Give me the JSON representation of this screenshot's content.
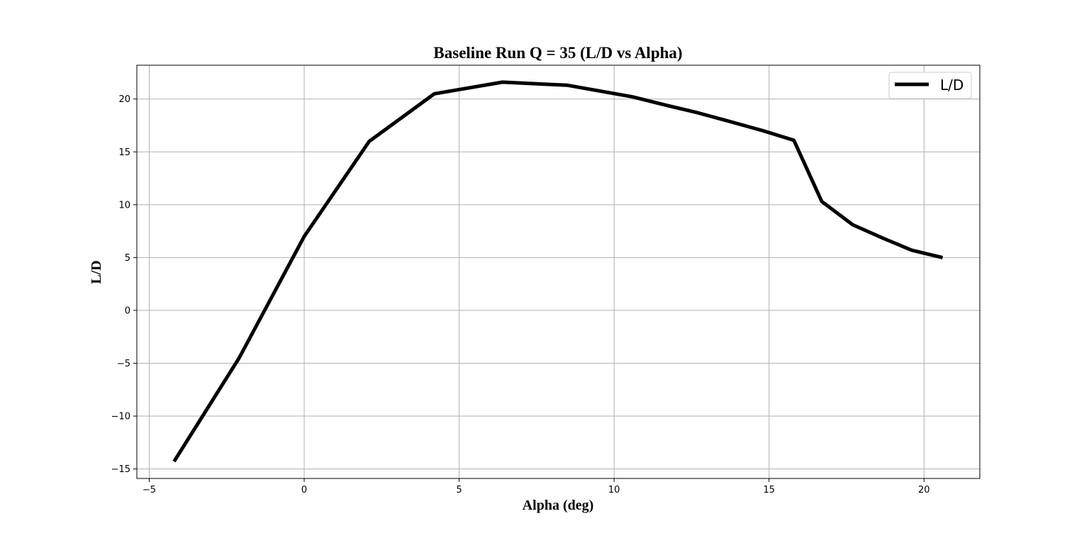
{
  "chart_data": {
    "type": "line",
    "title": "Baseline Run Q = 35 (L/D vs Alpha)",
    "xlabel": "Alpha (deg)",
    "ylabel": "L/D",
    "xlim": [
      -5.4,
      21.8
    ],
    "ylim": [
      -15.9,
      23.2
    ],
    "xticks": [
      -5,
      0,
      5,
      10,
      15,
      20
    ],
    "yticks": [
      -15,
      -10,
      -5,
      0,
      5,
      10,
      15,
      20
    ],
    "xtick_labels": [
      "−5",
      "0",
      "5",
      "10",
      "15",
      "20"
    ],
    "ytick_labels": [
      "−15",
      "−10",
      "−5",
      "0",
      "5",
      "10",
      "15",
      "20"
    ],
    "grid": true,
    "legend_position": "top-right",
    "series": [
      {
        "name": "L/D",
        "color": "#000000",
        "x": [
          -4.2,
          -2.1,
          0.0,
          2.1,
          4.2,
          6.4,
          8.5,
          10.6,
          11.7,
          12.7,
          13.7,
          14.8,
          15.8,
          16.7,
          17.7,
          18.7,
          19.6,
          20.6
        ],
        "y": [
          -14.3,
          -4.5,
          7.0,
          16.0,
          20.5,
          21.6,
          21.3,
          20.2,
          19.4,
          18.7,
          17.9,
          17.0,
          16.1,
          10.3,
          8.1,
          6.8,
          5.7,
          5.0
        ]
      }
    ]
  }
}
